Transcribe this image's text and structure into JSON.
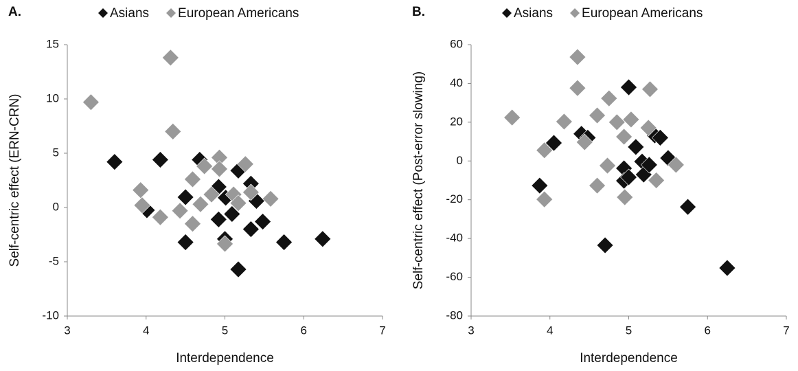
{
  "chart_data": [
    {
      "type": "scatter",
      "title": "A.",
      "xlabel": "Interdependence",
      "ylabel": "Self-centric effect (ERN-CRN)",
      "xlim": [
        3,
        7
      ],
      "xticks": [
        3,
        4,
        5,
        6,
        7
      ],
      "ylim": [
        -10,
        15
      ],
      "yticks": [
        -10,
        -5,
        0,
        5,
        10,
        15
      ],
      "series": [
        {
          "name": "Asians",
          "color": "#111111",
          "x": [
            3.6,
            4.01,
            4.18,
            4.5,
            4.5,
            4.68,
            4.92,
            4.92,
            5.01,
            5.0,
            5.09,
            5.17,
            5.17,
            5.33,
            5.33,
            5.4,
            5.48,
            5.75,
            6.24
          ],
          "values": [
            4.2,
            -0.25,
            4.4,
            0.95,
            -3.2,
            4.4,
            1.9,
            -1.1,
            0.9,
            -2.9,
            -0.6,
            3.4,
            -5.7,
            2.2,
            -2.0,
            0.6,
            -1.3,
            -3.2,
            -2.9
          ]
        },
        {
          "name": "European Americans",
          "color": "#999999",
          "x": [
            3.3,
            4.31,
            3.93,
            3.95,
            4.18,
            4.34,
            4.43,
            4.59,
            4.59,
            4.69,
            4.74,
            4.83,
            4.93,
            4.93,
            5.0,
            5.11,
            5.17,
            5.26,
            5.33,
            5.58
          ],
          "values": [
            9.7,
            13.8,
            1.6,
            0.2,
            -0.9,
            7.0,
            -0.3,
            2.6,
            -1.5,
            0.3,
            3.8,
            1.2,
            4.6,
            3.55,
            -3.35,
            1.2,
            0.4,
            4.0,
            1.4,
            0.8
          ]
        }
      ]
    },
    {
      "type": "scatter",
      "title": "B.",
      "xlabel": "Interdependence",
      "ylabel": "Self-centric effect (Post-error slowing)",
      "xlim": [
        3,
        7
      ],
      "xticks": [
        3,
        4,
        5,
        6,
        7
      ],
      "ylim": [
        -80,
        60
      ],
      "yticks": [
        -80,
        -60,
        -40,
        -20,
        0,
        20,
        40,
        60
      ],
      "series": [
        {
          "name": "Asians",
          "color": "#111111",
          "x": [
            3.87,
            4.05,
            4.4,
            4.48,
            4.7,
            4.94,
            4.94,
            5.0,
            5.0,
            5.09,
            5.17,
            5.19,
            5.26,
            5.33,
            5.4,
            5.5,
            5.75,
            6.25
          ],
          "values": [
            -12.7,
            9.3,
            14,
            12,
            -43.5,
            -3.8,
            -10.2,
            38,
            -8.4,
            7.2,
            -0.3,
            -7,
            -2,
            13.2,
            12,
            1.5,
            -23.7,
            -55.2
          ]
        },
        {
          "name": "European Americans",
          "color": "#999999",
          "x": [
            3.52,
            3.93,
            3.93,
            4.18,
            4.35,
            4.35,
            4.44,
            4.6,
            4.6,
            4.73,
            4.75,
            4.85,
            4.94,
            4.95,
            5.03,
            5.25,
            5.27,
            5.35,
            5.6
          ],
          "values": [
            22.4,
            5.5,
            -19.8,
            20.3,
            53.6,
            37.6,
            9.7,
            23.5,
            -12.7,
            -2.4,
            32.3,
            20,
            12.5,
            -18.7,
            21.4,
            17.1,
            37,
            -10,
            -2
          ]
        }
      ]
    }
  ]
}
